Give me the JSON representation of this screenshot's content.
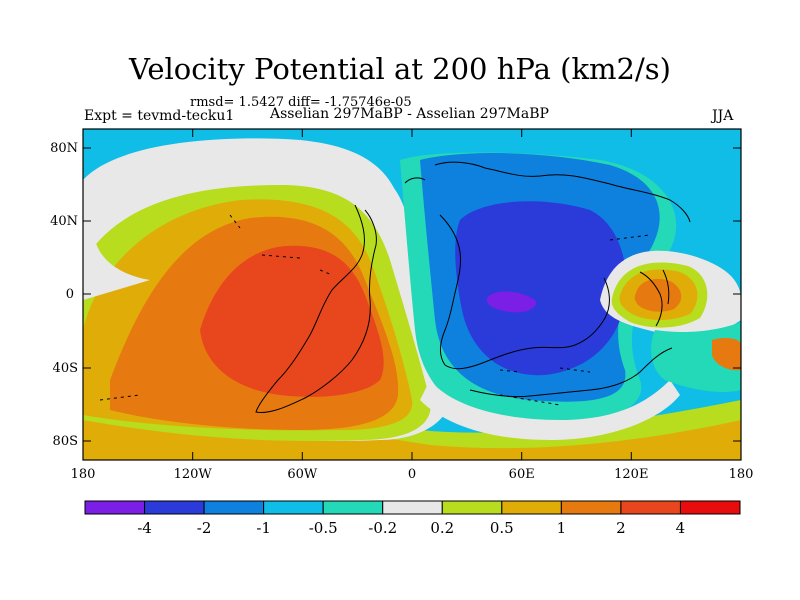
{
  "title": "Velocity Potential at 200 hPa (km2/s)",
  "stats_text": "rmsd= 1.5427 diff= -1.75746e-05",
  "experiment": "Expt = tevmd-tecku1",
  "comparison": "Asselian 297MaBP - Asselian 297MaBP",
  "season": "JJA",
  "axes": {
    "lat_ticks": [
      "80N",
      "40N",
      "0",
      "40S",
      "80S"
    ],
    "lon_ticks": [
      "180",
      "120W",
      "60W",
      "0",
      "60E",
      "120E",
      "180"
    ]
  },
  "colorbar": {
    "colors": [
      "#7b1ee6",
      "#2a3bd9",
      "#0e80dd",
      "#10bde6",
      "#24d9b7",
      "#e8e8e8",
      "#b8dc1e",
      "#e0ad08",
      "#e67a10",
      "#e8461c",
      "#e80c0c"
    ],
    "labels": [
      "-4",
      "-2",
      "-1",
      "-0.5",
      "-0.2",
      "0.2",
      "0.5",
      "1",
      "2",
      "4"
    ]
  }
}
